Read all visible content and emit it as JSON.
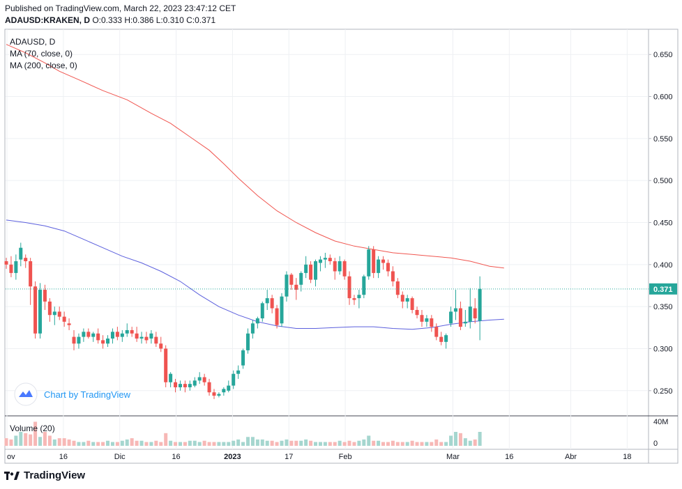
{
  "header": {
    "published": "Published on TradingView.com, March 22, 2023 23:47:12 CET",
    "symbol": "ADAUSD:KRAKEN, D",
    "ohlc": "O:0.333 H:0.386 L:0.310 C:0.371"
  },
  "footer": {
    "brand": "TradingView"
  },
  "watermark": {
    "text": "Chart by TradingView"
  },
  "colors": {
    "up": "#26a69a",
    "down": "#ef5350",
    "ma70": "#5b5fdd",
    "ma200": "#f0554f",
    "last_price": "#26a69a"
  },
  "chart_data": {
    "type": "candlestick",
    "title": "ADAUSD, D",
    "legend": [
      "MA (70, close, 0)",
      "MA (200, close, 0)"
    ],
    "price_axis": {
      "ticks": [
        "0.650",
        "0.600",
        "0.550",
        "0.500",
        "0.450",
        "0.400",
        "0.350",
        "0.300",
        "0.250"
      ],
      "ylim": [
        0.22,
        0.68
      ]
    },
    "last_price_label": "0.371",
    "last_price": 0.371,
    "x_tick_labels": [
      "ov",
      "16",
      "Dic",
      "16",
      "2023",
      "17",
      "Feb",
      "Mar",
      "16",
      "Abr",
      "18"
    ],
    "x_tick_index": [
      0,
      11,
      22,
      33,
      44,
      55,
      66,
      87,
      98,
      110,
      121
    ],
    "candles": [
      [
        0.404,
        0.408,
        0.395,
        0.4
      ],
      [
        0.4,
        0.41,
        0.385,
        0.39
      ],
      [
        0.39,
        0.412,
        0.382,
        0.404
      ],
      [
        0.406,
        0.426,
        0.398,
        0.42
      ],
      [
        0.408,
        0.412,
        0.396,
        0.404
      ],
      [
        0.404,
        0.408,
        0.352,
        0.374
      ],
      [
        0.374,
        0.38,
        0.312,
        0.318
      ],
      [
        0.318,
        0.378,
        0.312,
        0.37
      ],
      [
        0.37,
        0.376,
        0.346,
        0.356
      ],
      [
        0.356,
        0.36,
        0.332,
        0.34
      ],
      [
        0.34,
        0.35,
        0.328,
        0.344
      ],
      [
        0.344,
        0.35,
        0.334,
        0.338
      ],
      [
        0.338,
        0.344,
        0.326,
        0.332
      ],
      [
        0.33,
        0.336,
        0.322,
        0.328
      ],
      [
        0.314,
        0.322,
        0.298,
        0.306
      ],
      [
        0.306,
        0.318,
        0.3,
        0.314
      ],
      [
        0.314,
        0.324,
        0.308,
        0.32
      ],
      [
        0.32,
        0.324,
        0.312,
        0.314
      ],
      [
        0.314,
        0.32,
        0.308,
        0.318
      ],
      [
        0.318,
        0.324,
        0.306,
        0.31
      ],
      [
        0.31,
        0.316,
        0.3,
        0.306
      ],
      [
        0.306,
        0.316,
        0.302,
        0.312
      ],
      [
        0.312,
        0.324,
        0.306,
        0.32
      ],
      [
        0.32,
        0.326,
        0.31,
        0.314
      ],
      [
        0.314,
        0.322,
        0.308,
        0.318
      ],
      [
        0.318,
        0.33,
        0.314,
        0.322
      ],
      [
        0.322,
        0.326,
        0.314,
        0.318
      ],
      [
        0.318,
        0.326,
        0.308,
        0.312
      ],
      [
        0.312,
        0.32,
        0.306,
        0.314
      ],
      [
        0.314,
        0.32,
        0.306,
        0.31
      ],
      [
        0.312,
        0.322,
        0.306,
        0.318
      ],
      [
        0.314,
        0.32,
        0.302,
        0.306
      ],
      [
        0.306,
        0.314,
        0.296,
        0.3
      ],
      [
        0.3,
        0.304,
        0.254,
        0.26
      ],
      [
        0.26,
        0.272,
        0.254,
        0.27
      ],
      [
        0.26,
        0.264,
        0.248,
        0.254
      ],
      [
        0.254,
        0.262,
        0.25,
        0.258
      ],
      [
        0.258,
        0.262,
        0.248,
        0.254
      ],
      [
        0.254,
        0.262,
        0.25,
        0.258
      ],
      [
        0.256,
        0.266,
        0.254,
        0.262
      ],
      [
        0.262,
        0.272,
        0.258,
        0.266
      ],
      [
        0.266,
        0.27,
        0.256,
        0.26
      ],
      [
        0.26,
        0.264,
        0.244,
        0.248
      ],
      [
        0.248,
        0.252,
        0.24,
        0.244
      ],
      [
        0.244,
        0.248,
        0.242,
        0.246
      ],
      [
        0.248,
        0.254,
        0.244,
        0.252
      ],
      [
        0.25,
        0.262,
        0.248,
        0.256
      ],
      [
        0.256,
        0.274,
        0.252,
        0.27
      ],
      [
        0.27,
        0.28,
        0.264,
        0.274
      ],
      [
        0.28,
        0.3,
        0.276,
        0.298
      ],
      [
        0.298,
        0.324,
        0.294,
        0.318
      ],
      [
        0.318,
        0.334,
        0.312,
        0.33
      ],
      [
        0.33,
        0.338,
        0.324,
        0.336
      ],
      [
        0.336,
        0.356,
        0.332,
        0.354
      ],
      [
        0.354,
        0.37,
        0.346,
        0.36
      ],
      [
        0.36,
        0.364,
        0.342,
        0.348
      ],
      [
        0.348,
        0.352,
        0.324,
        0.328
      ],
      [
        0.33,
        0.366,
        0.326,
        0.362
      ],
      [
        0.362,
        0.392,
        0.356,
        0.388
      ],
      [
        0.388,
        0.39,
        0.37,
        0.376
      ],
      [
        0.376,
        0.384,
        0.358,
        0.37
      ],
      [
        0.376,
        0.392,
        0.368,
        0.39
      ],
      [
        0.39,
        0.41,
        0.384,
        0.4
      ],
      [
        0.4,
        0.404,
        0.378,
        0.382
      ],
      [
        0.382,
        0.406,
        0.374,
        0.404
      ],
      [
        0.402,
        0.41,
        0.392,
        0.406
      ],
      [
        0.406,
        0.414,
        0.396,
        0.408
      ],
      [
        0.408,
        0.412,
        0.4,
        0.404
      ],
      [
        0.404,
        0.408,
        0.382,
        0.392
      ],
      [
        0.392,
        0.41,
        0.388,
        0.404
      ],
      [
        0.404,
        0.406,
        0.382,
        0.386
      ],
      [
        0.386,
        0.392,
        0.352,
        0.36
      ],
      [
        0.36,
        0.364,
        0.352,
        0.358
      ],
      [
        0.36,
        0.37,
        0.348,
        0.364
      ],
      [
        0.364,
        0.388,
        0.36,
        0.386
      ],
      [
        0.386,
        0.422,
        0.382,
        0.418
      ],
      [
        0.418,
        0.422,
        0.384,
        0.39
      ],
      [
        0.39,
        0.41,
        0.384,
        0.406
      ],
      [
        0.406,
        0.41,
        0.394,
        0.402
      ],
      [
        0.402,
        0.406,
        0.386,
        0.392
      ],
      [
        0.392,
        0.398,
        0.374,
        0.38
      ],
      [
        0.38,
        0.384,
        0.36,
        0.364
      ],
      [
        0.364,
        0.368,
        0.348,
        0.356
      ],
      [
        0.356,
        0.364,
        0.348,
        0.36
      ],
      [
        0.36,
        0.362,
        0.342,
        0.346
      ],
      [
        0.346,
        0.35,
        0.336,
        0.34
      ],
      [
        0.34,
        0.346,
        0.326,
        0.332
      ],
      [
        0.332,
        0.34,
        0.326,
        0.336
      ],
      [
        0.336,
        0.34,
        0.32,
        0.326
      ],
      [
        0.326,
        0.33,
        0.31,
        0.314
      ],
      [
        0.314,
        0.32,
        0.304,
        0.308
      ],
      [
        0.308,
        0.318,
        0.3,
        0.316
      ],
      [
        0.33,
        0.35,
        0.326,
        0.344
      ],
      [
        0.344,
        0.37,
        0.334,
        0.348
      ],
      [
        0.348,
        0.356,
        0.322,
        0.326
      ],
      [
        0.33,
        0.346,
        0.326,
        0.332
      ],
      [
        0.332,
        0.372,
        0.324,
        0.35
      ],
      [
        0.348,
        0.36,
        0.33,
        0.336
      ],
      [
        0.333,
        0.386,
        0.31,
        0.371
      ]
    ],
    "candle_x_offset": 8,
    "ma200": [
      [
        0,
        0.662
      ],
      [
        4,
        0.652
      ],
      [
        8,
        0.64
      ],
      [
        11,
        0.63
      ],
      [
        15,
        0.62
      ],
      [
        20,
        0.607
      ],
      [
        25,
        0.596
      ],
      [
        30,
        0.58
      ],
      [
        34,
        0.568
      ],
      [
        38,
        0.552
      ],
      [
        42,
        0.536
      ],
      [
        45,
        0.52
      ],
      [
        48,
        0.503
      ],
      [
        52,
        0.482
      ],
      [
        56,
        0.464
      ],
      [
        60,
        0.45
      ],
      [
        64,
        0.438
      ],
      [
        68,
        0.428
      ],
      [
        72,
        0.422
      ],
      [
        76,
        0.418
      ],
      [
        80,
        0.414
      ],
      [
        84,
        0.412
      ],
      [
        88,
        0.41
      ],
      [
        92,
        0.408
      ],
      [
        96,
        0.404
      ],
      [
        100,
        0.398
      ],
      [
        103,
        0.396
      ]
    ],
    "ma70": [
      [
        0,
        0.453
      ],
      [
        4,
        0.45
      ],
      [
        8,
        0.446
      ],
      [
        12,
        0.44
      ],
      [
        16,
        0.43
      ],
      [
        20,
        0.42
      ],
      [
        24,
        0.41
      ],
      [
        28,
        0.402
      ],
      [
        32,
        0.392
      ],
      [
        36,
        0.38
      ],
      [
        40,
        0.364
      ],
      [
        44,
        0.35
      ],
      [
        48,
        0.34
      ],
      [
        52,
        0.332
      ],
      [
        56,
        0.327
      ],
      [
        60,
        0.324
      ],
      [
        64,
        0.324
      ],
      [
        68,
        0.325
      ],
      [
        72,
        0.326
      ],
      [
        76,
        0.326
      ],
      [
        80,
        0.324
      ],
      [
        84,
        0.323
      ],
      [
        88,
        0.325
      ],
      [
        92,
        0.329
      ],
      [
        96,
        0.332
      ],
      [
        100,
        0.334
      ],
      [
        103,
        0.335
      ]
    ],
    "volume": {
      "label": "Volume (20)",
      "axis_ticks": [
        "40M",
        "0"
      ],
      "ymax": 44,
      "values": [
        12,
        10,
        16,
        22,
        20,
        18,
        38,
        14,
        22,
        16,
        10,
        12,
        12,
        10,
        8,
        6,
        6,
        8,
        6,
        6,
        6,
        8,
        6,
        6,
        8,
        10,
        12,
        8,
        8,
        6,
        6,
        8,
        6,
        20,
        8,
        6,
        6,
        6,
        8,
        8,
        6,
        8,
        6,
        6,
        6,
        6,
        6,
        8,
        10,
        6,
        14,
        14,
        10,
        10,
        8,
        8,
        6,
        8,
        10,
        8,
        8,
        8,
        10,
        8,
        6,
        6,
        6,
        6,
        6,
        8,
        6,
        8,
        6,
        8,
        10,
        16,
        8,
        8,
        6,
        6,
        8,
        6,
        6,
        6,
        8,
        6,
        6,
        6,
        6,
        10,
        6,
        6,
        16,
        22,
        20,
        12,
        8,
        10,
        22
      ]
    }
  }
}
